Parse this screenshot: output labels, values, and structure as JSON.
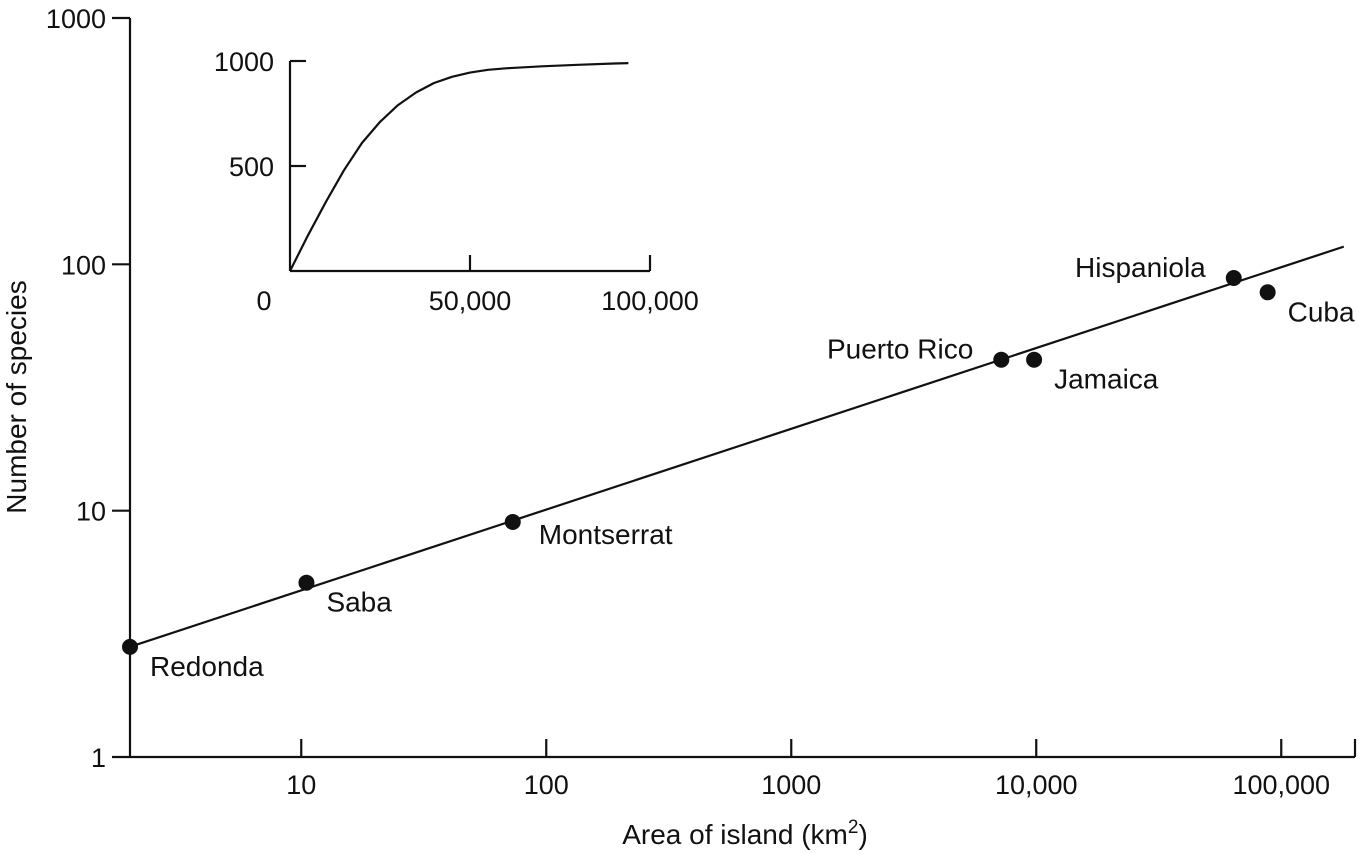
{
  "chart_data": [
    {
      "type": "scatter",
      "title": "",
      "xlabel": "Area of island (km",
      "xlabel_superscript": "2",
      "xlabel_close": ")",
      "ylabel": "Number of species",
      "xscale": "log",
      "yscale": "log",
      "xlim": [
        2,
        200000
      ],
      "ylim": [
        1,
        1000
      ],
      "grid": false,
      "x_ticks": [
        {
          "value": 10,
          "label": "10"
        },
        {
          "value": 100,
          "label": "100"
        },
        {
          "value": 1000,
          "label": "1000"
        },
        {
          "value": 10000,
          "label": "10,000"
        },
        {
          "value": 100000,
          "label": "100,000"
        }
      ],
      "y_ticks": [
        {
          "value": 1,
          "label": "1"
        },
        {
          "value": 10,
          "label": "10"
        },
        {
          "value": 100,
          "label": "100"
        },
        {
          "value": 1000,
          "label": "1000"
        }
      ],
      "points": [
        {
          "label": "Redonda",
          "x": 2,
          "y": 2.8,
          "label_pos": "below-right"
        },
        {
          "label": "Saba",
          "x": 10.5,
          "y": 5.1,
          "label_pos": "below-right"
        },
        {
          "label": "Montserrat",
          "x": 73,
          "y": 9,
          "label_pos": "right"
        },
        {
          "label": "Puerto Rico",
          "x": 7200,
          "y": 41,
          "label_pos": "left"
        },
        {
          "label": "Jamaica",
          "x": 9800,
          "y": 41,
          "label_pos": "below-right"
        },
        {
          "label": "Hispaniola",
          "x": 64000,
          "y": 88,
          "label_pos": "left"
        },
        {
          "label": "Cuba",
          "x": 88000,
          "y": 77,
          "label_pos": "below-right"
        }
      ],
      "fit_line": {
        "x": [
          2,
          180000
        ],
        "y": [
          2.8,
          118
        ]
      },
      "colors": {
        "ink": "#111111",
        "background": "#ffffff"
      }
    },
    {
      "type": "line",
      "title": "",
      "position": "inset",
      "xscale": "linear",
      "yscale": "linear",
      "xlim": [
        0,
        100000
      ],
      "ylim": [
        0,
        1000
      ],
      "x_ticks": [
        {
          "value": 0,
          "label": "0"
        },
        {
          "value": 50000,
          "label": "50,000"
        },
        {
          "value": 100000,
          "label": "100,000"
        }
      ],
      "y_ticks": [
        {
          "value": 500,
          "label": "500"
        },
        {
          "value": 1000,
          "label": "1000"
        }
      ],
      "series": [
        {
          "x": [
            0,
            5000,
            10000,
            15000,
            20000,
            25000,
            30000,
            35000,
            40000,
            45000,
            50000,
            55000,
            60000,
            70000,
            80000,
            90000,
            94000
          ],
          "y": [
            0,
            170,
            330,
            480,
            610,
            710,
            790,
            850,
            895,
            925,
            945,
            958,
            965,
            975,
            982,
            988,
            990
          ]
        }
      ]
    }
  ]
}
